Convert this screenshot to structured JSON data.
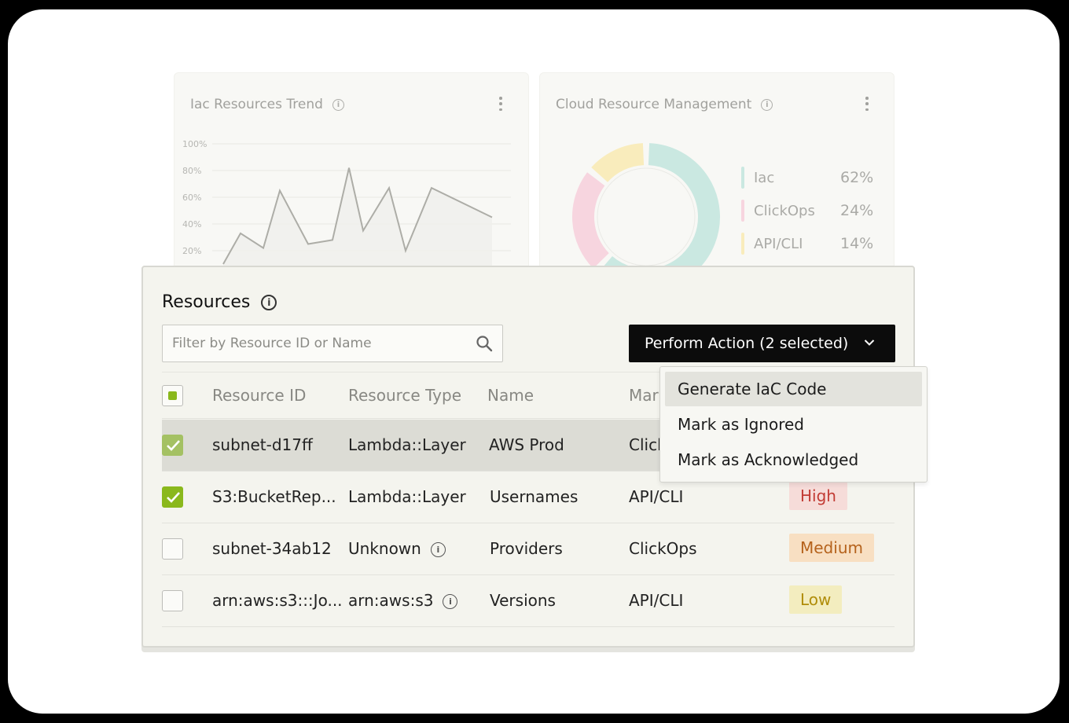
{
  "trend_card": {
    "title": "Iac Resources Trend",
    "y_ticks": [
      "100%",
      "80%",
      "60%",
      "40%",
      "20%"
    ]
  },
  "cloud_card": {
    "title": "Cloud Resource Management",
    "legend": [
      {
        "label": "Iac",
        "pct": "62%",
        "color": "#b7e0d6"
      },
      {
        "label": "ClickOps",
        "pct": "24%",
        "color": "#f5c6d3"
      },
      {
        "label": "API/CLI",
        "pct": "14%",
        "color": "#f7e6a3"
      }
    ]
  },
  "chart_data": [
    {
      "type": "line",
      "title": "Iac Resources Trend",
      "y_ticks": [
        "100%",
        "80%",
        "60%",
        "40%",
        "20%"
      ],
      "ylim": [
        0,
        100
      ],
      "values": [
        10,
        33,
        22,
        65,
        25,
        28,
        82,
        35,
        67,
        20,
        67,
        45
      ]
    },
    {
      "type": "pie",
      "title": "Cloud Resource Management",
      "labels": [
        "Iac",
        "ClickOps",
        "API/CLI"
      ],
      "values": [
        62,
        24,
        14
      ]
    }
  ],
  "panel": {
    "title": "Resources",
    "search_placeholder": "Filter by Resource ID or Name",
    "action_label": "Perform Action (2 selected)",
    "headers": {
      "resource_id": "Resource ID",
      "resource_type": "Resource Type",
      "name": "Name",
      "managed": "Mar"
    },
    "rows": [
      {
        "id": "subnet-d17ff",
        "type": "Lambda::Layer",
        "name": "AWS Prod",
        "managed": "Click",
        "severity": "",
        "checked": true
      },
      {
        "id": "S3:BucketRep...",
        "type": "Lambda::Layer",
        "name": "Usernames",
        "managed": "API/CLI",
        "severity": "High",
        "checked": true
      },
      {
        "id": "subnet-34ab12",
        "type": "Unknown",
        "name": "Providers",
        "managed": "ClickOps",
        "severity": "Medium",
        "checked": false
      },
      {
        "id": "arn:aws:s3:::Jo...",
        "type": "arn:aws:s3",
        "name": "Versions",
        "managed": "API/CLI",
        "severity": "Low",
        "checked": false
      }
    ],
    "severity_colors": {
      "High": {
        "bg": "#f6dcd9",
        "fg": "#c23b34"
      },
      "Medium": {
        "bg": "#f8dfc2",
        "fg": "#b5621c"
      },
      "Low": {
        "bg": "#f3edbf",
        "fg": "#b08d0a"
      }
    }
  },
  "dropdown": {
    "items": [
      "Generate IaC Code",
      "Mark as Ignored",
      "Mark as Acknowledged"
    ]
  }
}
